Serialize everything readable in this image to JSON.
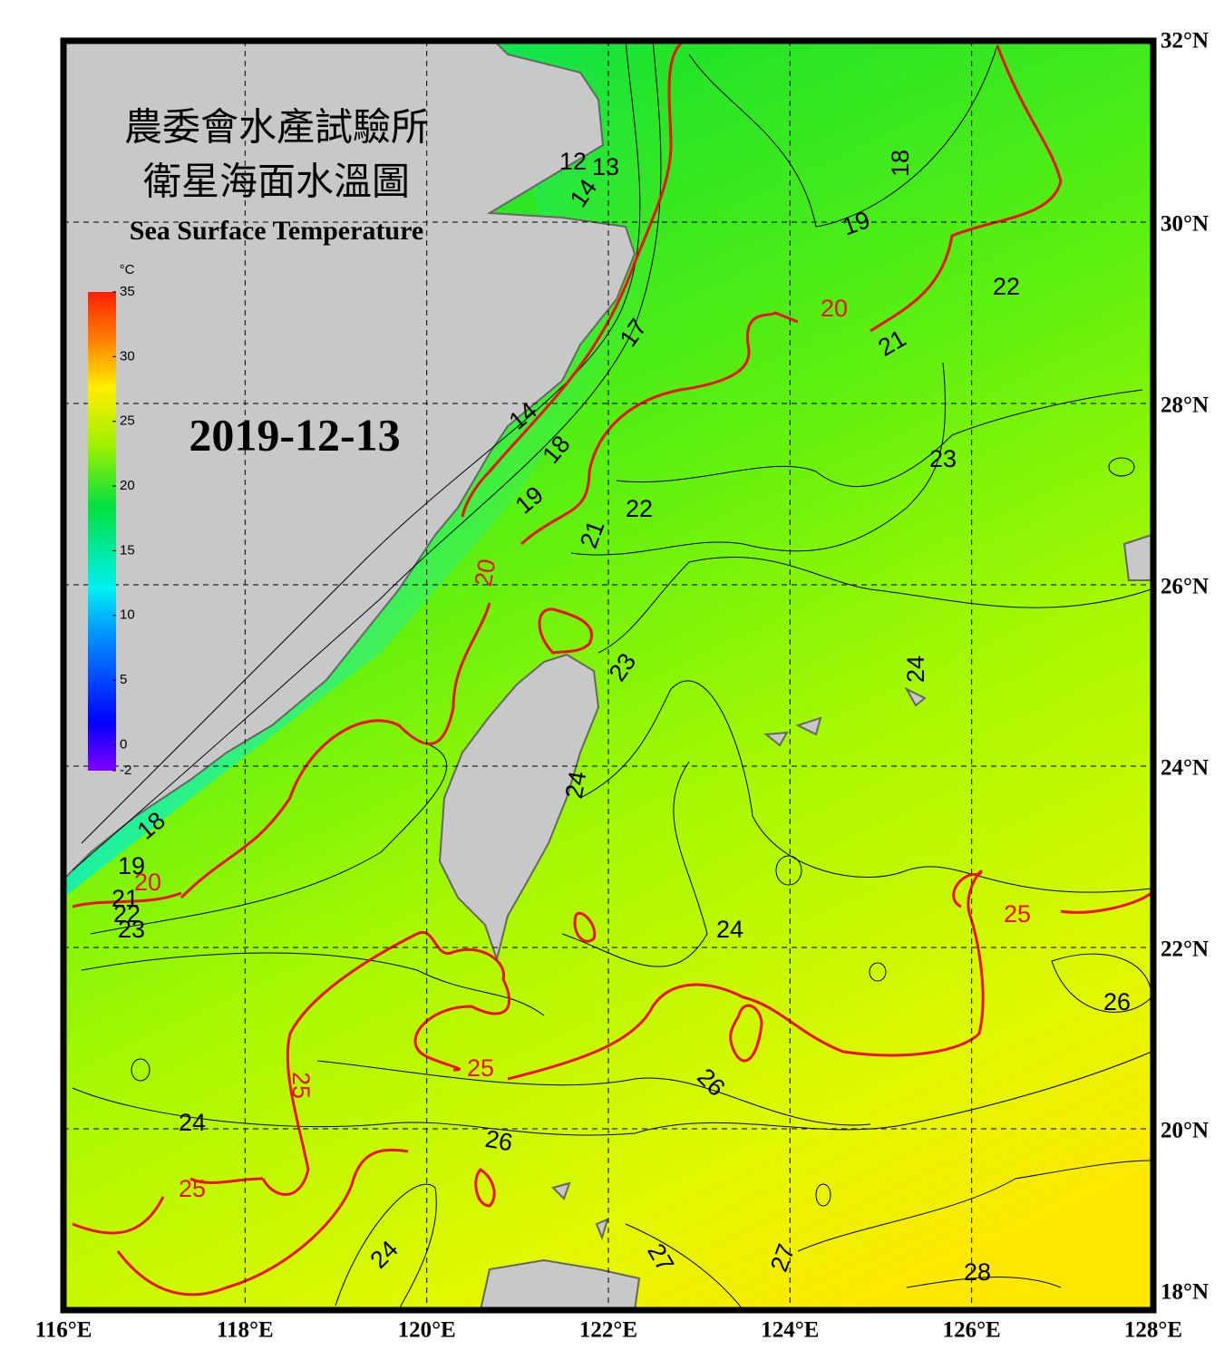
{
  "title_zh_1": "農委會水產試驗所",
  "title_zh_2": "衛星海面水溫圖",
  "title_en": "Sea Surface Temperature",
  "date": "2019-12-13",
  "colorbar": {
    "unit": "°C",
    "lim": [
      -2,
      35
    ],
    "ticks": [
      -2,
      0,
      5,
      10,
      15,
      20,
      25,
      30,
      35
    ]
  },
  "map": {
    "lonlim": [
      116,
      128
    ],
    "latlim": [
      18,
      32
    ],
    "lonticks": [
      {
        "value": 116,
        "label": "116°E"
      },
      {
        "value": 118,
        "label": "118°E"
      },
      {
        "value": 120,
        "label": "120°E"
      },
      {
        "value": 122,
        "label": "122°E"
      },
      {
        "value": 124,
        "label": "124°E"
      },
      {
        "value": 126,
        "label": "126°E"
      },
      {
        "value": 128,
        "label": "128°E"
      }
    ],
    "latticks": [
      {
        "value": 18,
        "label": "18°N"
      },
      {
        "value": 20,
        "label": "20°N"
      },
      {
        "value": 22,
        "label": "22°N"
      },
      {
        "value": 24,
        "label": "24°N"
      },
      {
        "value": 26,
        "label": "26°N"
      },
      {
        "value": 28,
        "label": "28°N"
      },
      {
        "value": 30,
        "label": "30°N"
      },
      {
        "value": 32,
        "label": "32°N"
      }
    ],
    "contour_labels": [
      12,
      13,
      14,
      17,
      14,
      18,
      19,
      21,
      22,
      20,
      23,
      24,
      24,
      18,
      19,
      20,
      21,
      22,
      23,
      18,
      19,
      20,
      21,
      22,
      23,
      24,
      25,
      26,
      25,
      26,
      25,
      24,
      26,
      25,
      24,
      27,
      27,
      28
    ]
  }
}
